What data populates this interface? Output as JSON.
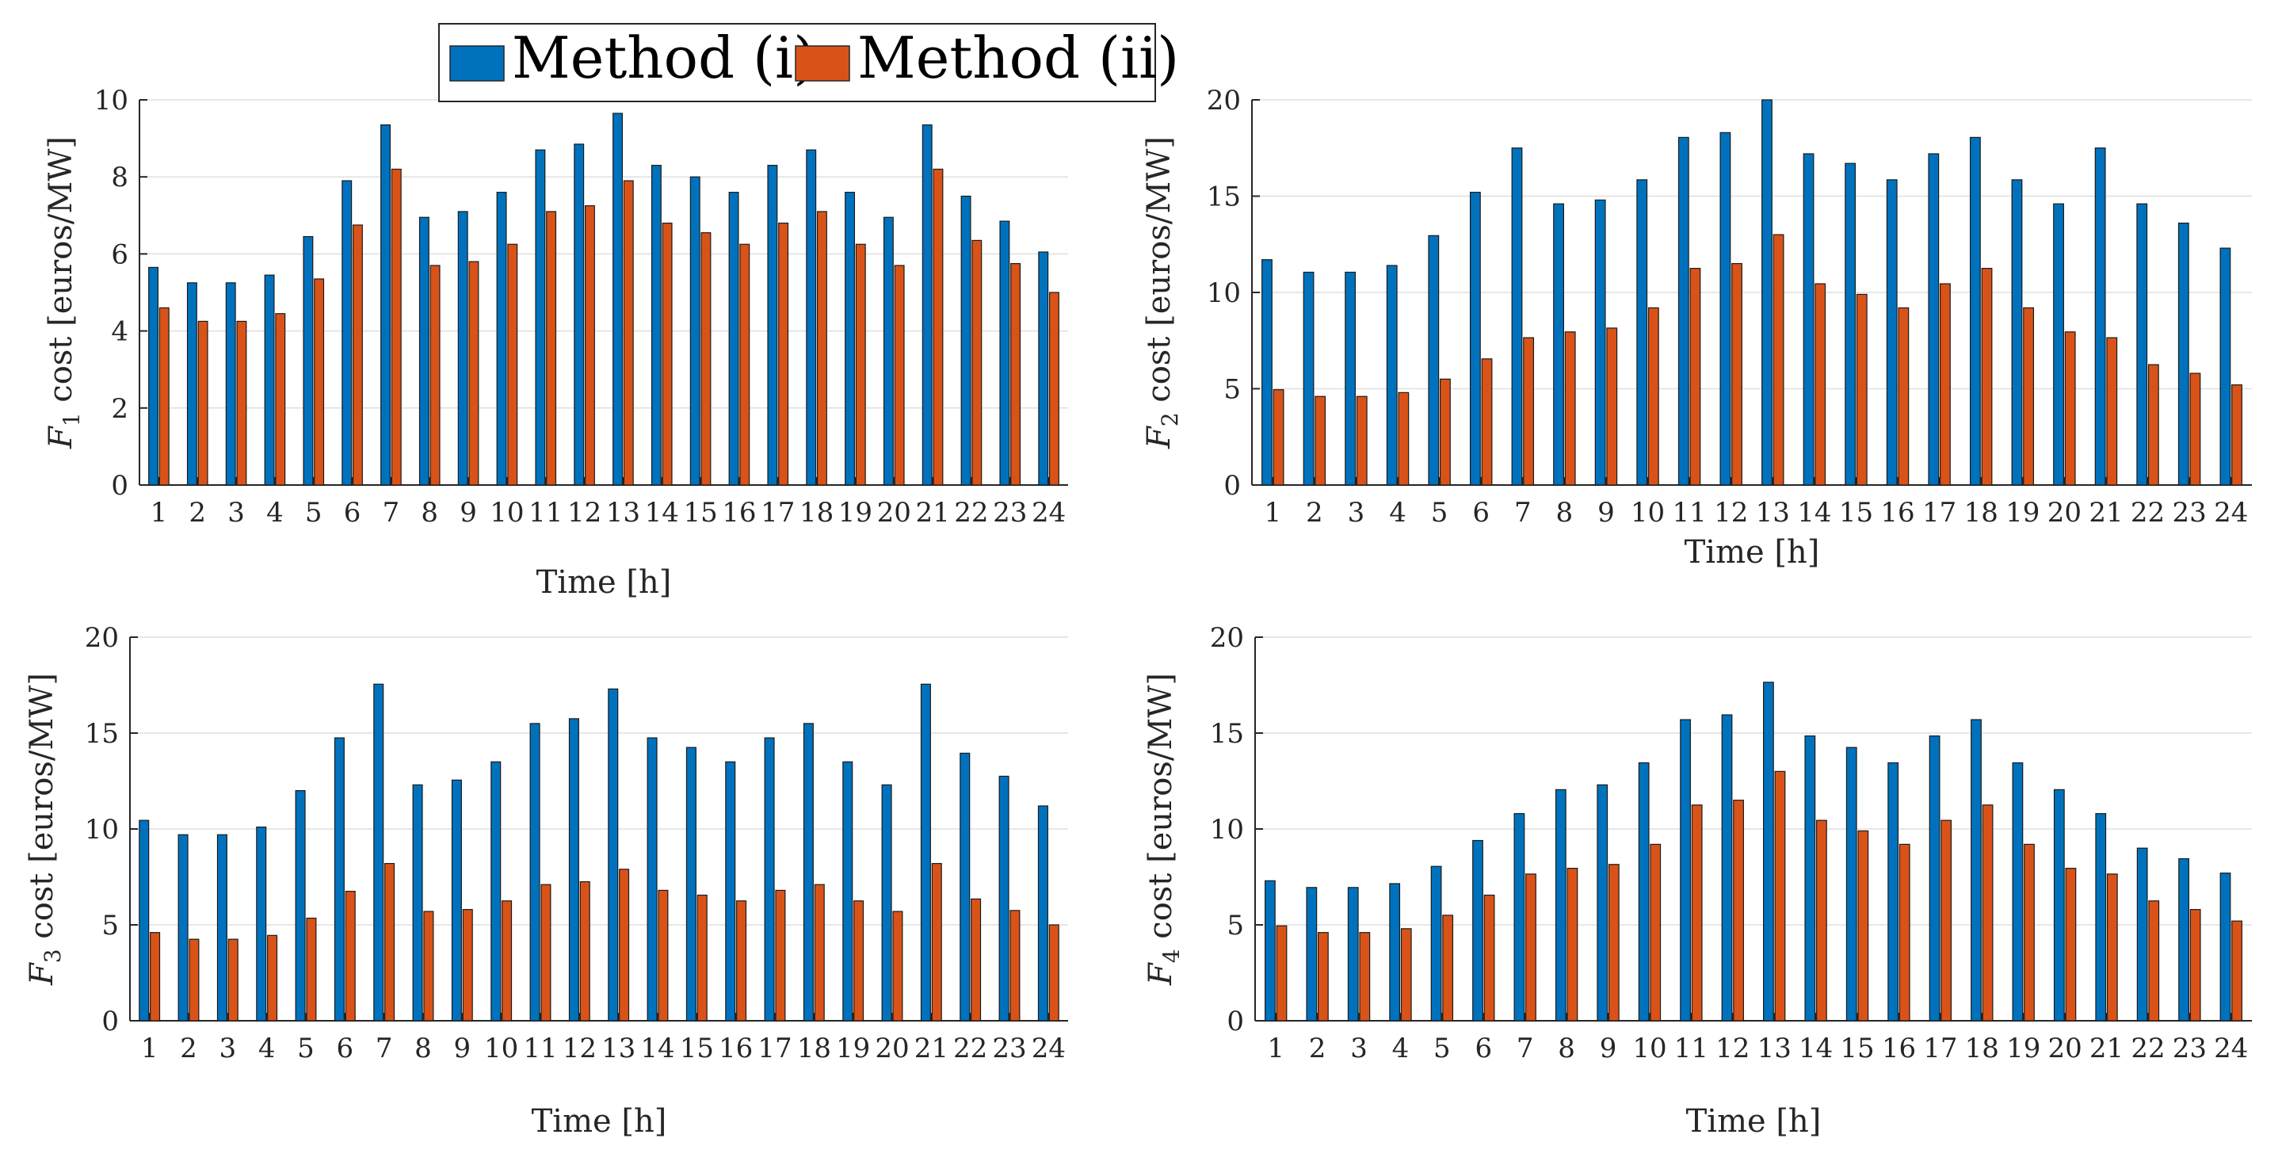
{
  "legend": {
    "entries": [
      {
        "label": "Method (i)",
        "color": "#0072BD"
      },
      {
        "label": "Method (ii)",
        "color": "#D95319"
      }
    ]
  },
  "chart_data": [
    {
      "type": "bar",
      "title": "",
      "xlabel": "Time [h]",
      "ylabel_symbol": "F",
      "ylabel_sub": "1",
      "ylabel_rest": " cost [euros/MW]",
      "ylim": [
        0,
        10
      ],
      "yticks": [
        0,
        2,
        4,
        6,
        8,
        10
      ],
      "grid": true,
      "categories": [
        "1",
        "2",
        "3",
        "4",
        "5",
        "6",
        "7",
        "8",
        "9",
        "10",
        "11",
        "12",
        "13",
        "14",
        "15",
        "16",
        "17",
        "18",
        "19",
        "20",
        "21",
        "22",
        "23",
        "24"
      ],
      "series": [
        {
          "name": "Method (i)",
          "values": [
            5.65,
            5.25,
            5.25,
            5.45,
            6.45,
            7.9,
            9.35,
            6.95,
            7.1,
            7.6,
            8.7,
            8.85,
            9.65,
            8.3,
            8.0,
            7.6,
            8.3,
            8.7,
            7.6,
            6.95,
            9.35,
            7.5,
            6.85,
            6.05
          ]
        },
        {
          "name": "Method (ii)",
          "values": [
            4.6,
            4.25,
            4.25,
            4.45,
            5.35,
            6.75,
            8.2,
            5.7,
            5.8,
            6.25,
            7.1,
            7.25,
            7.9,
            6.8,
            6.55,
            6.25,
            6.8,
            7.1,
            6.25,
            5.7,
            8.2,
            6.35,
            5.75,
            5.0
          ]
        }
      ]
    },
    {
      "type": "bar",
      "title": "",
      "xlabel": "Time [h]",
      "ylabel_symbol": "F",
      "ylabel_sub": "2",
      "ylabel_rest": " cost [euros/MW]",
      "ylim": [
        0,
        20
      ],
      "yticks": [
        0,
        5,
        10,
        15,
        20
      ],
      "grid": true,
      "categories": [
        "1",
        "2",
        "3",
        "4",
        "5",
        "6",
        "7",
        "8",
        "9",
        "10",
        "11",
        "12",
        "13",
        "14",
        "15",
        "16",
        "17",
        "18",
        "19",
        "20",
        "21",
        "22",
        "23",
        "24"
      ],
      "series": [
        {
          "name": "Method (i)",
          "values": [
            11.7,
            11.05,
            11.05,
            11.4,
            12.95,
            15.2,
            17.5,
            14.6,
            14.8,
            15.85,
            18.05,
            18.3,
            20.0,
            17.2,
            16.7,
            15.85,
            17.2,
            18.05,
            15.85,
            14.6,
            17.5,
            14.6,
            13.6,
            12.3
          ]
        },
        {
          "name": "Method (ii)",
          "values": [
            4.95,
            4.6,
            4.6,
            4.8,
            5.5,
            6.55,
            7.65,
            7.95,
            8.15,
            9.2,
            11.25,
            11.5,
            13.0,
            10.45,
            9.9,
            9.2,
            10.45,
            11.25,
            9.2,
            7.95,
            7.65,
            6.25,
            5.8,
            5.2
          ]
        }
      ]
    },
    {
      "type": "bar",
      "title": "",
      "xlabel": "Time [h]",
      "ylabel_symbol": "F",
      "ylabel_sub": "3",
      "ylabel_rest": " cost [euros/MW]",
      "ylim": [
        0,
        20
      ],
      "yticks": [
        0,
        5,
        10,
        15,
        20
      ],
      "grid": true,
      "categories": [
        "1",
        "2",
        "3",
        "4",
        "5",
        "6",
        "7",
        "8",
        "9",
        "10",
        "11",
        "12",
        "13",
        "14",
        "15",
        "16",
        "17",
        "18",
        "19",
        "20",
        "21",
        "22",
        "23",
        "24"
      ],
      "series": [
        {
          "name": "Method (i)",
          "values": [
            10.45,
            9.7,
            9.7,
            10.1,
            12.0,
            14.75,
            17.55,
            12.3,
            12.55,
            13.5,
            15.5,
            15.75,
            17.3,
            14.75,
            14.25,
            13.5,
            14.75,
            15.5,
            13.5,
            12.3,
            17.55,
            13.95,
            12.75,
            11.2
          ]
        },
        {
          "name": "Method (ii)",
          "values": [
            4.6,
            4.25,
            4.25,
            4.45,
            5.35,
            6.75,
            8.2,
            5.7,
            5.8,
            6.25,
            7.1,
            7.25,
            7.9,
            6.8,
            6.55,
            6.25,
            6.8,
            7.1,
            6.25,
            5.7,
            8.2,
            6.35,
            5.75,
            5.0
          ]
        }
      ]
    },
    {
      "type": "bar",
      "title": "",
      "xlabel": "Time [h]",
      "ylabel_symbol": "F",
      "ylabel_sub": "4",
      "ylabel_rest": " cost [euros/MW]",
      "ylim": [
        0,
        20
      ],
      "yticks": [
        0,
        5,
        10,
        15,
        20
      ],
      "grid": true,
      "categories": [
        "1",
        "2",
        "3",
        "4",
        "5",
        "6",
        "7",
        "8",
        "9",
        "10",
        "11",
        "12",
        "13",
        "14",
        "15",
        "16",
        "17",
        "18",
        "19",
        "20",
        "21",
        "22",
        "23",
        "24"
      ],
      "series": [
        {
          "name": "Method (i)",
          "values": [
            7.3,
            6.95,
            6.95,
            7.15,
            8.05,
            9.4,
            10.8,
            12.05,
            12.3,
            13.45,
            15.7,
            15.95,
            17.65,
            14.85,
            14.25,
            13.45,
            14.85,
            15.7,
            13.45,
            12.05,
            10.8,
            9.0,
            8.45,
            7.7
          ]
        },
        {
          "name": "Method (ii)",
          "values": [
            4.95,
            4.6,
            4.6,
            4.8,
            5.5,
            6.55,
            7.65,
            7.95,
            8.15,
            9.2,
            11.25,
            11.5,
            13.0,
            10.45,
            9.9,
            9.2,
            10.45,
            11.25,
            9.2,
            7.95,
            7.65,
            6.25,
            5.8,
            5.2
          ]
        }
      ]
    }
  ]
}
